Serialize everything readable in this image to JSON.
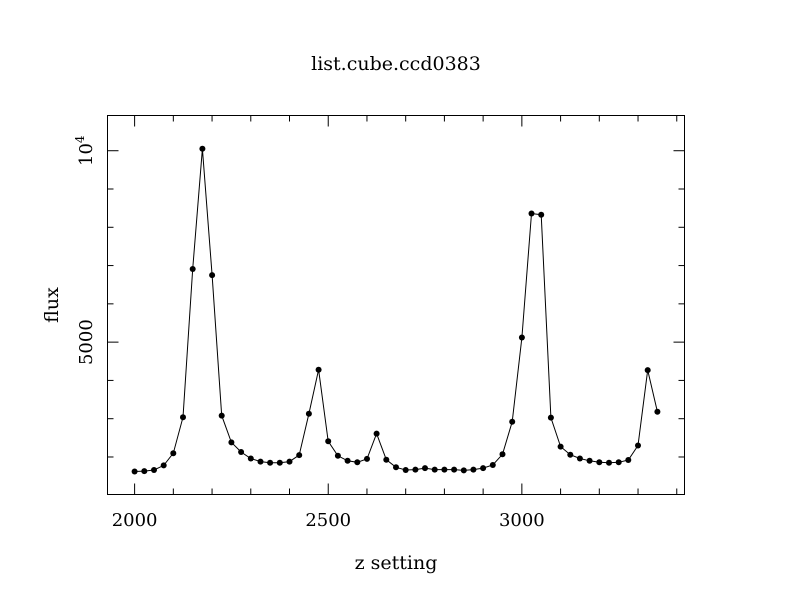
{
  "chart_data": {
    "type": "line",
    "title": "list.cube.ccd0383",
    "xlabel": "z setting",
    "ylabel": "flux",
    "xlim": [
      1930,
      3420
    ],
    "ylim": [
      1020,
      10920
    ],
    "x_ticks": [
      2000,
      2500,
      3000
    ],
    "y_ticks": [
      {
        "value": 5000,
        "label": "5000"
      },
      {
        "value": 10000,
        "label": "10",
        "exponent": "4"
      }
    ],
    "grid": false,
    "legend": "none",
    "line_color": "#000000",
    "marker": "filled-circle",
    "series": [
      {
        "x": [
          2000,
          2025,
          2050,
          2075,
          2100,
          2125,
          2150,
          2175,
          2200,
          2225,
          2250,
          2275,
          2300,
          2325,
          2350,
          2375,
          2400,
          2425,
          2450,
          2475,
          2500,
          2525,
          2550,
          2575,
          2600,
          2625,
          2650,
          2675,
          2700,
          2725,
          2750,
          2775,
          2800,
          2825,
          2850,
          2875,
          2900,
          2925,
          2950,
          2975,
          3000,
          3025,
          3050,
          3075,
          3100,
          3125,
          3150,
          3175,
          3200,
          3225,
          3250,
          3275,
          3300,
          3325,
          3350
        ],
        "values": [
          1620,
          1630,
          1660,
          1780,
          2100,
          3040,
          6910,
          10050,
          6750,
          3080,
          2380,
          2130,
          1960,
          1880,
          1850,
          1850,
          1880,
          2050,
          3130,
          4280,
          2410,
          2030,
          1900,
          1860,
          1950,
          2610,
          1930,
          1730,
          1660,
          1670,
          1710,
          1670,
          1670,
          1670,
          1650,
          1670,
          1710,
          1790,
          2070,
          2920,
          5120,
          8360,
          8330,
          3030,
          2270,
          2060,
          1960,
          1900,
          1860,
          1850,
          1860,
          1920,
          2300,
          4270,
          3180
        ]
      }
    ]
  }
}
